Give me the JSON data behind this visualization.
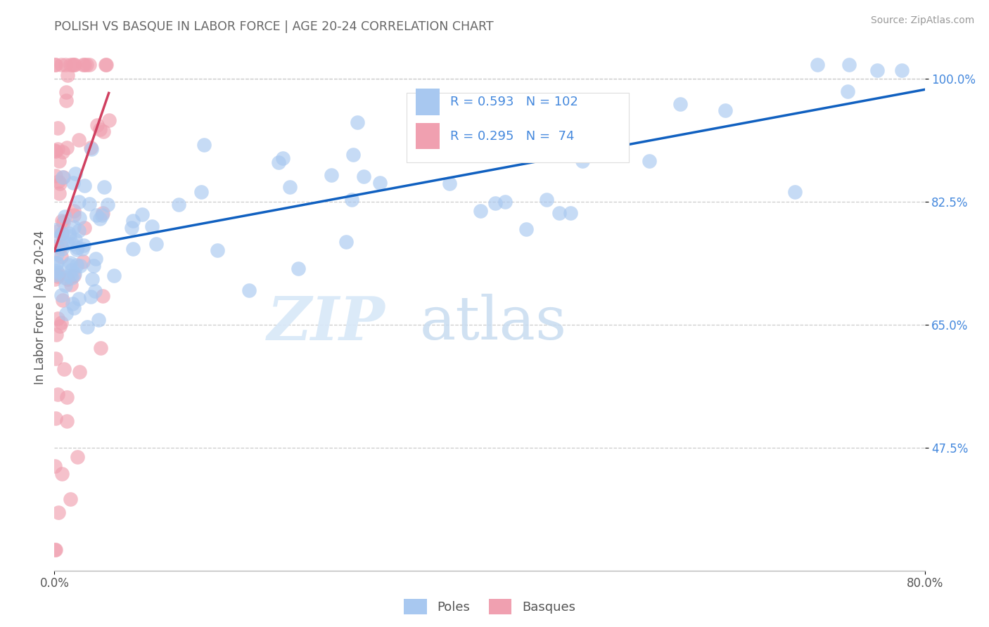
{
  "title": "POLISH VS BASQUE IN LABOR FORCE | AGE 20-24 CORRELATION CHART",
  "source_text": "Source: ZipAtlas.com",
  "ylabel": "In Labor Force | Age 20-24",
  "xlim": [
    0.0,
    80.0
  ],
  "ylim": [
    30.0,
    105.0
  ],
  "y_tick_values": [
    47.5,
    65.0,
    82.5,
    100.0
  ],
  "blue_color": "#A8C8F0",
  "pink_color": "#F0A0B0",
  "blue_line_color": "#1060C0",
  "pink_line_color": "#D04060",
  "legend_label_blue": "Poles",
  "legend_label_pink": "Basques",
  "watermark_zip": "ZIP",
  "watermark_atlas": "atlas",
  "title_color": "#666666",
  "axis_label_color": "#4488DD",
  "background_color": "#FFFFFF",
  "grid_color": "#CCCCCC",
  "blue_R": 0.593,
  "pink_R": 0.295,
  "blue_N": 102,
  "pink_N": 74,
  "blue_trend_x0": 0.0,
  "blue_trend_y0": 75.5,
  "blue_trend_x1": 80.0,
  "blue_trend_y1": 98.5,
  "pink_trend_x0": 0.0,
  "pink_trend_y0": 75.5,
  "pink_trend_x1": 5.0,
  "pink_trend_y1": 98.0
}
